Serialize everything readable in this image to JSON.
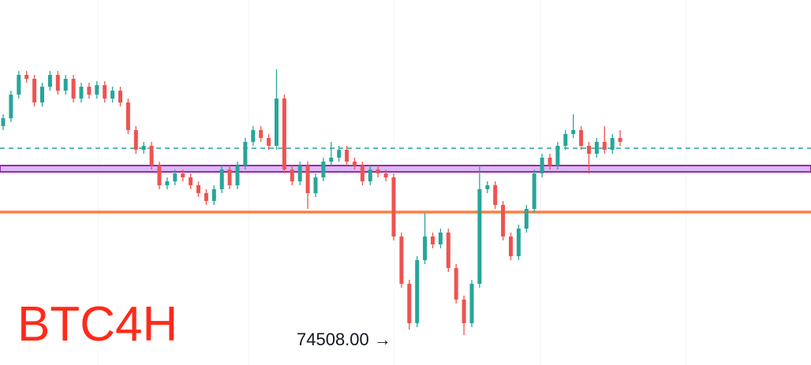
{
  "chart_data": {
    "type": "candlestick",
    "title": "BTC4H",
    "annotation": {
      "text": "74508.00 →",
      "value": 74508
    },
    "ylim": [
      73158,
      87048
    ],
    "up_color": "#26a69a",
    "down_color": "#ef5350",
    "open": [
      82248,
      82548,
      83448,
      84198,
      84048,
      83148,
      83748,
      84198,
      83598,
      84048,
      83298,
      83748,
      83448,
      83808,
      83298,
      83598,
      83148,
      82098,
      81348,
      81498,
      80748,
      79998,
      80148,
      80448,
      80298,
      79998,
      79698,
      79398,
      79848,
      80598,
      79998,
      80748,
      81648,
      82098,
      81798,
      81498,
      83298,
      80598,
      80148,
      80748,
      79698,
      80298,
      80898,
      81048,
      81348,
      80898,
      80748,
      80148,
      80598,
      80448,
      80298,
      78048,
      76248,
      74748,
      77148,
      78048,
      77748,
      78198,
      76848,
      75648,
      74748,
      76248,
      79848,
      79998,
      79248,
      78048,
      77298,
      78348,
      79098,
      80448,
      81048,
      80748,
      81498,
      81948,
      82098,
      81498,
      81198,
      81648,
      81348,
      81798
    ],
    "high": [
      82698,
      83598,
      84348,
      84348,
      84198,
      83898,
      84348,
      84348,
      84198,
      84198,
      83898,
      83898,
      83958,
      83958,
      83748,
      83748,
      83298,
      82248,
      81648,
      81648,
      80898,
      80298,
      80598,
      80598,
      80448,
      80148,
      79848,
      79998,
      80748,
      80748,
      80898,
      81798,
      82248,
      82248,
      81948,
      84408,
      83448,
      80748,
      80898,
      80898,
      80448,
      81048,
      81648,
      81498,
      81498,
      81048,
      80898,
      80748,
      80748,
      80598,
      80448,
      78198,
      76398,
      77298,
      78948,
      78198,
      78348,
      78348,
      76998,
      75798,
      76398,
      80748,
      80148,
      80148,
      79398,
      78198,
      78498,
      79248,
      80598,
      81198,
      81198,
      81648,
      82098,
      82698,
      82248,
      81648,
      81798,
      82248,
      81948,
      82098
    ],
    "low": [
      82098,
      82398,
      83298,
      83898,
      82998,
      82998,
      83598,
      83448,
      83448,
      83148,
      83148,
      83298,
      83298,
      83148,
      83148,
      82998,
      81948,
      81198,
      81198,
      80598,
      79848,
      79848,
      79998,
      80148,
      79848,
      79548,
      79248,
      79248,
      79698,
      79848,
      79848,
      80598,
      81498,
      81648,
      81348,
      81348,
      80448,
      79998,
      79998,
      79098,
      79548,
      80148,
      80748,
      80898,
      80748,
      80598,
      79998,
      79998,
      80298,
      80148,
      77898,
      76098,
      74508,
      74598,
      76998,
      77598,
      77598,
      76698,
      75498,
      74298,
      74598,
      76098,
      79698,
      79098,
      77898,
      77148,
      77148,
      78198,
      78948,
      80298,
      80598,
      80598,
      81348,
      81798,
      81348,
      80448,
      81048,
      81198,
      81198,
      81498
    ],
    "close": [
      82548,
      83448,
      84198,
      84048,
      83148,
      83748,
      84198,
      83598,
      84048,
      83298,
      83748,
      83448,
      83808,
      83298,
      83598,
      83148,
      82098,
      81348,
      81498,
      80748,
      79998,
      80148,
      80448,
      80298,
      79998,
      79698,
      79398,
      79848,
      80598,
      79998,
      80748,
      81648,
      82098,
      81798,
      81498,
      83298,
      80598,
      80148,
      80748,
      79698,
      80298,
      80898,
      81048,
      81348,
      80898,
      80748,
      80148,
      80598,
      80448,
      80298,
      78048,
      76248,
      74748,
      77148,
      78048,
      77748,
      78198,
      76848,
      75648,
      74748,
      76248,
      79848,
      79998,
      79248,
      78048,
      77298,
      78348,
      79098,
      80448,
      81048,
      80748,
      81498,
      81948,
      82098,
      81498,
      81198,
      81648,
      81348,
      81798,
      81648
    ],
    "dashed_level": {
      "value": 81408,
      "color": "#26a69a"
    },
    "band": {
      "values": [
        80508,
        80748
      ],
      "color": "#9c27b0",
      "fill": "#dcb8f5"
    },
    "support_level": {
      "value": 78978,
      "color": "#ff7f3f"
    }
  }
}
